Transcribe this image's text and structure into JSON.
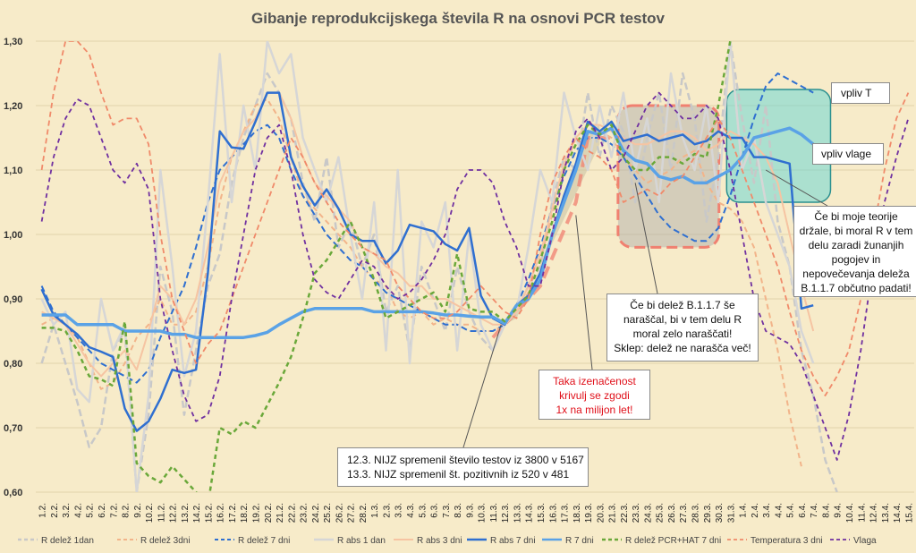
{
  "chart_data": {
    "type": "line",
    "title": "Gibanje reprodukcijskega števila R na osnovi PCR testov",
    "ylim": [
      0.6,
      1.3
    ],
    "yticks": [
      "0,60",
      "0,70",
      "0,80",
      "0,90",
      "1,00",
      "1,10",
      "1,20",
      "1,30"
    ],
    "grid": "horizontal",
    "legend": "bottom",
    "categories": [
      "1.2.",
      "2.2.",
      "3.2.",
      "4.2.",
      "5.2.",
      "6.2.",
      "7.2.",
      "8.2.",
      "9.2.",
      "10.2.",
      "11.2.",
      "12.2.",
      "13.2.",
      "14.2.",
      "15.2.",
      "16.2.",
      "17.2.",
      "18.2.",
      "19.2.",
      "20.2.",
      "21.2.",
      "22.2.",
      "23.2.",
      "24.2.",
      "25.2.",
      "26.2.",
      "27.2.",
      "28.2.",
      "1.3.",
      "2.3.",
      "3.3.",
      "4.3.",
      "5.3.",
      "6.3.",
      "7.3.",
      "8.3.",
      "9.3.",
      "10.3.",
      "11.3.",
      "12.3.",
      "13.3.",
      "14.3.",
      "15.3.",
      "16.3.",
      "17.3.",
      "18.3.",
      "19.3.",
      "20.3.",
      "21.3.",
      "22.3.",
      "23.3.",
      "24.3.",
      "25.3.",
      "26.3.",
      "27.3.",
      "28.3.",
      "29.3.",
      "30.3.",
      "31.3.",
      "1.4.",
      "2.4.",
      "3.4.",
      "4.4.",
      "5.4.",
      "6.4.",
      "7.4.",
      "8.4.",
      "9.4.",
      "10.4.",
      "11.4.",
      "12.4.",
      "13.4.",
      "14.4.",
      "15.4."
    ],
    "series": [
      {
        "name": "R delež 1dan",
        "color": "#c8c8c8",
        "dash": "8,4",
        "width": 2.5,
        "values": [
          0.8,
          0.86,
          0.8,
          0.74,
          0.67,
          0.7,
          0.82,
          0.85,
          0.6,
          0.72,
          0.95,
          0.88,
          0.72,
          0.82,
          0.92,
          0.97,
          1.08,
          1.15,
          1.2,
          1.25,
          1.22,
          1.18,
          1.08,
          1.02,
          1.12,
          0.98,
          1.02,
          0.95,
          1.0,
          0.88,
          0.92,
          0.82,
          0.95,
          0.9,
          0.85,
          0.95,
          0.88,
          0.84,
          0.82,
          0.86,
          0.88,
          0.92,
          0.95,
          1.05,
          1.12,
          1.1,
          1.22,
          1.12,
          1.2,
          1.16,
          1.05,
          1.15,
          1.22,
          1.1,
          1.25,
          1.18,
          1.02,
          1.12,
          1.3,
          1.18,
          1.08,
          1.2,
          1.02,
          0.95,
          0.82,
          0.75,
          0.65,
          0.6,
          null,
          null,
          null,
          null,
          null,
          null
        ]
      },
      {
        "name": "R delež 3dni",
        "color": "#f2b48a",
        "dash": "6,4",
        "width": 2,
        "values": [
          0.86,
          0.87,
          0.86,
          0.84,
          0.8,
          0.76,
          0.77,
          0.8,
          0.84,
          0.86,
          0.9,
          0.86,
          0.86,
          0.88,
          0.95,
          1.05,
          1.12,
          1.16,
          1.2,
          1.21,
          1.18,
          1.12,
          1.06,
          1.04,
          1.02,
          1.0,
          0.98,
          0.95,
          0.93,
          0.92,
          0.88,
          0.87,
          0.88,
          0.86,
          0.87,
          0.86,
          0.86,
          0.85,
          0.85,
          0.86,
          0.88,
          0.91,
          0.96,
          1.03,
          1.1,
          1.15,
          1.17,
          1.16,
          1.15,
          1.12,
          1.1,
          1.08,
          1.09,
          1.1,
          1.12,
          1.13,
          1.08,
          1.05,
          1.04,
          1.02,
          0.98,
          0.9,
          0.82,
          0.72,
          0.64,
          null,
          null,
          null,
          null,
          null,
          null,
          null,
          null,
          null
        ]
      },
      {
        "name": "R delež 7 dni",
        "color": "#2f6fd0",
        "dash": "7,4",
        "width": 2,
        "values": [
          0.92,
          0.88,
          0.86,
          0.84,
          0.82,
          0.8,
          0.79,
          0.78,
          0.77,
          0.79,
          0.84,
          0.88,
          0.92,
          0.98,
          1.05,
          1.1,
          1.12,
          1.14,
          1.16,
          1.17,
          1.15,
          1.1,
          1.06,
          1.03,
          1.0,
          0.98,
          0.96,
          0.95,
          0.93,
          0.91,
          0.9,
          0.89,
          0.88,
          0.87,
          0.86,
          0.86,
          0.85,
          0.85,
          0.85,
          0.86,
          0.89,
          0.93,
          0.98,
          1.04,
          1.09,
          1.13,
          1.15,
          1.15,
          1.14,
          1.12,
          1.09,
          1.06,
          1.03,
          1.01,
          1.0,
          0.99,
          0.99,
          1.01,
          1.06,
          1.12,
          1.18,
          1.23,
          1.25,
          1.24,
          1.23,
          1.22,
          null,
          null,
          null,
          null,
          null,
          null,
          null,
          null
        ]
      },
      {
        "name": "R abs 1 dan",
        "color": "#d6d6d6",
        "dash": "",
        "width": 2.5,
        "values": [
          0.9,
          0.86,
          0.88,
          0.76,
          0.74,
          0.9,
          0.82,
          0.86,
          0.6,
          0.75,
          1.1,
          0.95,
          0.78,
          0.85,
          1.05,
          1.28,
          1.05,
          1.2,
          1.1,
          1.3,
          1.25,
          1.28,
          1.15,
          1.1,
          1.05,
          1.12,
          1.0,
          0.9,
          1.05,
          0.82,
          1.1,
          0.8,
          1.02,
          0.98,
          1.05,
          0.82,
          1.0,
          0.86,
          0.82,
          0.86,
          0.88,
          0.98,
          1.1,
          1.05,
          1.22,
          1.15,
          1.1,
          1.2,
          1.12,
          1.22,
          1.1,
          1.18,
          1.05,
          1.25,
          1.15,
          1.1,
          1.2,
          1.05,
          1.3,
          1.1,
          1.15,
          1.05,
          1.0,
          0.95,
          0.85,
          0.8,
          null,
          null,
          null,
          null,
          null,
          null,
          null,
          null
        ]
      },
      {
        "name": "R abs 3 dni",
        "color": "#f6c4a2",
        "dash": "",
        "width": 2,
        "values": [
          0.88,
          0.87,
          0.86,
          0.83,
          0.8,
          0.78,
          0.8,
          0.82,
          0.79,
          0.85,
          0.92,
          0.9,
          0.86,
          0.9,
          0.98,
          1.08,
          1.12,
          1.16,
          1.18,
          1.22,
          1.22,
          1.18,
          1.12,
          1.08,
          1.06,
          1.04,
          1.02,
          0.98,
          0.97,
          0.95,
          0.94,
          0.92,
          0.92,
          0.9,
          0.9,
          0.89,
          0.88,
          0.87,
          0.86,
          0.86,
          0.88,
          0.92,
          0.97,
          1.04,
          1.11,
          1.15,
          1.17,
          1.17,
          1.16,
          1.15,
          1.14,
          1.14,
          1.15,
          1.16,
          1.16,
          1.15,
          1.13,
          1.14,
          1.16,
          1.15,
          1.14,
          1.12,
          1.08,
          1.0,
          0.92,
          0.85,
          null,
          null,
          null,
          null,
          null,
          null,
          null,
          null
        ]
      },
      {
        "name": "R abs 7 dni",
        "color": "#2f6fd0",
        "dash": "",
        "width": 2.5,
        "values": [
          0.915,
          0.875,
          0.86,
          0.845,
          0.825,
          0.818,
          0.81,
          0.73,
          0.695,
          0.71,
          0.745,
          0.79,
          0.785,
          0.79,
          0.94,
          1.16,
          1.135,
          1.133,
          1.175,
          1.22,
          1.22,
          1.12,
          1.075,
          1.045,
          1.07,
          1.04,
          1.0,
          0.99,
          0.99,
          0.955,
          0.975,
          1.015,
          1.01,
          1.005,
          0.985,
          0.975,
          1.01,
          0.905,
          0.87,
          0.86,
          0.89,
          0.905,
          0.94,
          1.0,
          1.06,
          1.11,
          1.175,
          1.16,
          1.175,
          1.145,
          1.15,
          1.155,
          1.145,
          1.15,
          1.155,
          1.14,
          1.145,
          1.16,
          1.15,
          1.15,
          1.12,
          1.12,
          1.115,
          1.11,
          0.885,
          0.89,
          null,
          null,
          null,
          null,
          null,
          null,
          null,
          null
        ]
      },
      {
        "name": "R 7 dni",
        "color": "#5aa2e6",
        "dash": "",
        "width": 3.5,
        "values": [
          0.875,
          0.875,
          0.875,
          0.86,
          0.86,
          0.86,
          0.86,
          0.85,
          0.85,
          0.85,
          0.85,
          0.845,
          0.845,
          0.84,
          0.84,
          0.84,
          0.84,
          0.84,
          0.843,
          0.848,
          0.86,
          0.87,
          0.88,
          0.885,
          0.885,
          0.885,
          0.885,
          0.885,
          0.88,
          0.88,
          0.88,
          0.88,
          0.88,
          0.878,
          0.875,
          0.875,
          0.873,
          0.872,
          0.872,
          0.862,
          0.89,
          0.9,
          0.93,
          1.0,
          1.05,
          1.1,
          1.16,
          1.155,
          1.165,
          1.13,
          1.115,
          1.11,
          1.09,
          1.085,
          1.09,
          1.08,
          1.08,
          1.09,
          1.1,
          1.12,
          1.15,
          1.155,
          1.16,
          1.165,
          1.155,
          1.14,
          null,
          null,
          null,
          null,
          null,
          null,
          null,
          null
        ]
      },
      {
        "name": "R delež PCR+HAT 7 dni",
        "color": "#6aa83a",
        "dash": "5,4",
        "width": 2.5,
        "values": [
          0.855,
          0.855,
          0.85,
          0.82,
          0.78,
          0.775,
          0.765,
          0.865,
          0.645,
          0.625,
          0.615,
          0.64,
          0.62,
          0.6,
          0.58,
          0.7,
          0.69,
          0.71,
          0.7,
          0.735,
          0.77,
          0.81,
          0.87,
          0.94,
          0.96,
          0.99,
          1.02,
          0.98,
          0.93,
          0.87,
          0.88,
          0.89,
          0.9,
          0.91,
          0.88,
          0.97,
          0.885,
          0.88,
          0.88,
          0.865,
          0.885,
          0.905,
          0.96,
          1.02,
          1.1,
          1.14,
          1.17,
          1.155,
          1.17,
          1.12,
          1.1,
          1.1,
          1.12,
          1.12,
          1.11,
          1.125,
          1.12,
          1.2,
          1.3,
          1.35,
          null,
          null,
          null,
          null,
          null,
          null,
          null,
          null,
          null,
          null,
          null,
          null,
          null,
          null
        ]
      },
      {
        "name": "Temperatura 3 dni",
        "color": "#f08a6a",
        "dash": "6,4",
        "width": 1.8,
        "values": [
          1.1,
          1.22,
          1.3,
          1.3,
          1.28,
          1.22,
          1.17,
          1.18,
          1.18,
          1.14,
          1.0,
          0.9,
          0.85,
          0.8,
          0.83,
          0.85,
          0.9,
          0.95,
          1.0,
          1.05,
          1.1,
          1.15,
          1.12,
          1.08,
          1.05,
          1.02,
          1.0,
          0.98,
          0.97,
          0.96,
          0.92,
          0.9,
          0.88,
          0.87,
          0.87,
          0.88,
          0.9,
          0.92,
          0.9,
          0.88,
          0.87,
          0.9,
          1.0,
          1.08,
          1.12,
          1.15,
          1.13,
          1.12,
          1.1,
          1.05,
          1.06,
          1.07,
          1.06,
          1.08,
          1.09,
          1.12,
          1.15,
          1.18,
          1.15,
          1.1,
          1.05,
          1.0,
          0.95,
          0.88,
          0.82,
          0.78,
          0.75,
          0.78,
          0.82,
          0.9,
          1.0,
          1.1,
          1.18,
          1.22
        ]
      },
      {
        "name": "Vlaga",
        "color": "#7030a0",
        "dash": "5,4",
        "width": 1.8,
        "values": [
          1.02,
          1.12,
          1.18,
          1.21,
          1.2,
          1.15,
          1.1,
          1.08,
          1.11,
          1.07,
          0.9,
          0.82,
          0.75,
          0.71,
          0.72,
          0.78,
          0.9,
          1.0,
          1.1,
          1.15,
          1.17,
          1.1,
          1.0,
          0.93,
          0.91,
          0.9,
          0.93,
          0.96,
          0.95,
          0.92,
          0.9,
          0.91,
          0.93,
          0.96,
          1.0,
          1.07,
          1.1,
          1.1,
          1.08,
          1.02,
          0.98,
          0.92,
          0.92,
          1.0,
          1.1,
          1.16,
          1.18,
          1.15,
          1.1,
          1.12,
          1.16,
          1.2,
          1.22,
          1.2,
          1.18,
          1.18,
          1.2,
          1.18,
          1.1,
          1.0,
          0.9,
          0.85,
          0.84,
          0.83,
          0.8,
          0.75,
          0.7,
          0.65,
          0.72,
          0.82,
          0.95,
          1.05,
          1.12,
          1.18
        ]
      }
    ],
    "annotations": {
      "vpliv_t": "vpliv T",
      "vpliv_vlage": "vpliv vlage",
      "teorije": [
        "Če bi moje teorije",
        "držale, bi moral R v tem",
        "delu zaradi žunanjih",
        "pogojev in",
        "nepovečevanja deleža",
        "B.1.1.7 občutno padati!"
      ],
      "delez": [
        "Če bi delež B.1.1.7 še",
        "naraščal, bi v tem delu R",
        "moral zelo naraščati!",
        "Sklep: delež ne narašča več!"
      ],
      "izenacenost": [
        "Taka izenačenost",
        "krivulj se zgodi",
        "1x na milijon let!"
      ],
      "nijz": [
        "12.3. NIJZ spremenil število testov iz 3800 v 5167",
        "13.3. NIJZ spremenil št. pozitivnih iz 520 v 481"
      ]
    },
    "colors": {
      "background": "#f7ebc9",
      "gridline": "#e2d3aa",
      "title": "#555555",
      "highlight_red": "#f08070",
      "highlight_cyan": "#5fd6d6",
      "highlight_gray": "#a8a8a8"
    }
  }
}
